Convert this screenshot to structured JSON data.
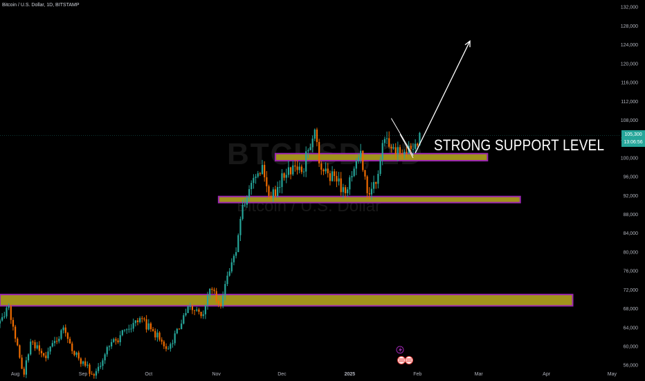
{
  "header": {
    "symbol_title": "Bitcoin / U.S. Dollar, 1D, BITSTAMP"
  },
  "watermark": {
    "symbol": "BTCUSD, 1D",
    "name": "Bitcoin / U.S. Dollar"
  },
  "annotation": {
    "text": "STRONG SUPPORT LEVEL"
  },
  "last_price": {
    "value": "105,300",
    "countdown": "13:06:56",
    "color": "#26a69a"
  },
  "colors": {
    "background": "#000000",
    "up": "#26a69a",
    "down": "#ef6c00",
    "zone_fill": "#a1921b",
    "zone_border": "#9c27b0",
    "axis_text": "#b2b5be",
    "annotation": "#ffffff"
  },
  "icons": [
    "lightning-event-icon",
    "us-flag-event-icon"
  ],
  "chart_data": {
    "type": "candlestick",
    "title": "Bitcoin / U.S. Dollar, 1D, BITSTAMP",
    "x_axis": {
      "labels": [
        "Aug",
        "Sep",
        "Oct",
        "Nov",
        "Dec",
        "2025",
        "Feb",
        "Mar",
        "Apr",
        "May"
      ],
      "range": [
        "2024-07-25",
        "2025-05-05"
      ]
    },
    "y_axis": {
      "ticks": [
        "56,000",
        "60,000",
        "64,000",
        "68,000",
        "72,000",
        "76,000",
        "80,000",
        "84,000",
        "88,000",
        "92,000",
        "96,000",
        "100,000",
        "104,000",
        "108,000",
        "112,000",
        "116,000",
        "120,000",
        "124,000",
        "128,000",
        "132,000"
      ],
      "range": [
        55000,
        133500
      ],
      "position": "right"
    },
    "grid": false,
    "close_anchors": [
      [
        "2024-07-25",
        65500
      ],
      [
        "2024-07-29",
        68500
      ],
      [
        "2024-08-05",
        54000
      ],
      [
        "2024-08-08",
        61000
      ],
      [
        "2024-08-15",
        57500
      ],
      [
        "2024-08-23",
        64000
      ],
      [
        "2024-08-27",
        59000
      ],
      [
        "2024-09-06",
        53800
      ],
      [
        "2024-09-13",
        60000
      ],
      [
        "2024-09-27",
        66000
      ],
      [
        "2024-10-10",
        59500
      ],
      [
        "2024-10-20",
        68500
      ],
      [
        "2024-10-26",
        66800
      ],
      [
        "2024-10-29",
        72200
      ],
      [
        "2024-11-03",
        68500
      ],
      [
        "2024-11-06",
        75000
      ],
      [
        "2024-11-10",
        80000
      ],
      [
        "2024-11-13",
        90000
      ],
      [
        "2024-11-22",
        98500
      ],
      [
        "2024-11-26",
        91500
      ],
      [
        "2024-12-04",
        98000
      ],
      [
        "2024-12-10",
        97000
      ],
      [
        "2024-12-16",
        106000
      ],
      [
        "2024-12-19",
        97500
      ],
      [
        "2024-12-26",
        95000
      ],
      [
        "2024-12-30",
        92500
      ],
      [
        "2025-01-06",
        101500
      ],
      [
        "2025-01-09",
        92500
      ],
      [
        "2025-01-13",
        94500
      ],
      [
        "2025-01-17",
        104000
      ],
      [
        "2025-01-20",
        102000
      ],
      [
        "2025-01-27",
        101000
      ],
      [
        "2025-01-31",
        103000
      ],
      [
        "2025-02-02",
        105300
      ]
    ],
    "support_zones": [
      {
        "from": "2024-07-25",
        "to": "2025-04-13",
        "low": 68600,
        "high": 71000
      },
      {
        "from": "2024-11-02",
        "to": "2025-03-20",
        "low": 90500,
        "high": 91800
      },
      {
        "from": "2024-11-28",
        "to": "2025-03-05",
        "low": 99400,
        "high": 100900
      }
    ],
    "projection_arrow": {
      "from": [
        "2025-01-31",
        101000
      ],
      "to": [
        "2025-02-25",
        124800
      ]
    },
    "wedge_lines": [
      {
        "from": [
          "2025-01-20",
          108400
        ],
        "to": [
          "2025-01-30",
          100500
        ]
      },
      {
        "from": [
          "2025-01-24",
          105000
        ],
        "to": [
          "2025-01-30",
          100000
        ]
      }
    ]
  }
}
